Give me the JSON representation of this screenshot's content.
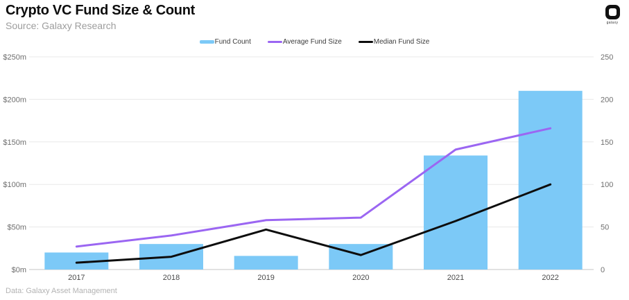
{
  "header": {
    "title": "Crypto VC Fund Size & Count",
    "subtitle": "Source: Galaxy Research",
    "logo_word": "galaxy"
  },
  "footer": {
    "source": "Data: Galaxy Asset Management"
  },
  "colors": {
    "bar_blue": "#7CC9F7",
    "line_purple": "#9B66F2",
    "line_black": "#0d0d0d",
    "grid": "#e8e8e8",
    "axis_line": "#d9d9d9",
    "tick_label": "#6e6e6e",
    "year_label": "#4a4a4a"
  },
  "legend": [
    {
      "label": "Fund Count",
      "color": "#7CC9F7",
      "swatch": "bar"
    },
    {
      "label": "Average Fund Size",
      "color": "#9B66F2",
      "swatch": "line"
    },
    {
      "label": "Median Fund Size",
      "color": "#0d0d0d",
      "swatch": "line"
    }
  ],
  "chart_data": {
    "type": "bar",
    "title": "Crypto VC Fund Size & Count",
    "categories": [
      "2017",
      "2018",
      "2019",
      "2020",
      "2021",
      "2022"
    ],
    "series": [
      {
        "name": "Fund Count",
        "type": "bar",
        "axis": "right",
        "color": "#7CC9F7",
        "values": [
          20,
          30,
          16,
          30,
          134,
          210
        ]
      },
      {
        "name": "Average Fund Size",
        "type": "line",
        "axis": "left",
        "color": "#9B66F2",
        "values": [
          27,
          40,
          58,
          61,
          141,
          166
        ]
      },
      {
        "name": "Median Fund Size",
        "type": "line",
        "axis": "left",
        "color": "#0d0d0d",
        "values": [
          8,
          15,
          47,
          17,
          57,
          100
        ]
      }
    ],
    "left_axis": {
      "label_format": "$m",
      "ticks": [
        "$0m",
        "$50m",
        "$100m",
        "$150m",
        "$200m",
        "$250m"
      ],
      "tick_values": [
        0,
        50,
        100,
        150,
        200,
        250
      ],
      "min": 0,
      "max": 250
    },
    "right_axis": {
      "ticks": [
        "0",
        "50",
        "100",
        "150",
        "200",
        "250"
      ],
      "tick_values": [
        0,
        50,
        100,
        150,
        200,
        250
      ],
      "min": 0,
      "max": 250
    },
    "grid": true,
    "legend_position": "top-center"
  }
}
